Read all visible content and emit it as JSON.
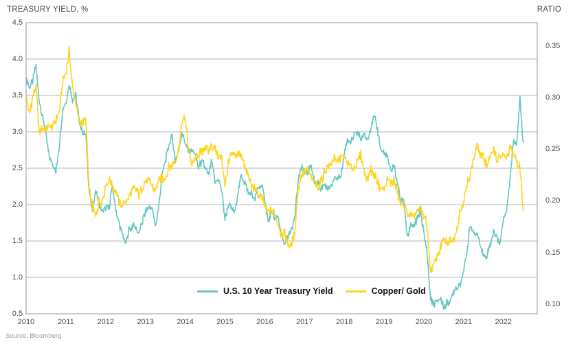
{
  "source_note": "Source: Bloomberg",
  "chart_data": {
    "type": "line",
    "title": "",
    "left_axis": {
      "title": "TREASURY YIELD, %",
      "tick_labels": [
        "4.5",
        "4.0",
        "3.5",
        "3.0",
        "2.5",
        "2.0",
        "1.5",
        "1.0",
        "0.5"
      ],
      "range": [
        0.5,
        4.5
      ]
    },
    "right_axis": {
      "title": "RATIO",
      "tick_labels": [
        "0.35",
        "0.30",
        "0.25",
        "0.20",
        "0.15",
        "0.10"
      ],
      "tick_range": [
        0.1,
        0.35
      ]
    },
    "x_axis": {
      "tick_labels": [
        "2010",
        "2011",
        "2012",
        "2013",
        "2014",
        "2015",
        "2016",
        "2017",
        "2018",
        "2019",
        "2020",
        "2021",
        "2022"
      ],
      "data_start": "2010-01",
      "data_end": "2022-07",
      "interval": "monthly"
    },
    "grid": "horizontal",
    "legend_position": "bottom-center-inside",
    "series": [
      {
        "id": "treasury-yield-line",
        "name": "U.S. 10 Year Treasury Yield",
        "axis": "left",
        "color": "#63c6c1",
        "noise_amplitude": 0.05,
        "values": [
          3.75,
          3.6,
          3.7,
          3.9,
          3.4,
          3.2,
          2.95,
          2.65,
          2.55,
          2.45,
          2.8,
          3.3,
          3.4,
          3.65,
          3.45,
          3.5,
          3.15,
          3.0,
          2.95,
          2.2,
          1.9,
          2.2,
          2.0,
          1.9,
          1.95,
          1.95,
          2.25,
          1.95,
          1.75,
          1.6,
          1.45,
          1.65,
          1.7,
          1.7,
          1.6,
          1.75,
          1.9,
          1.95,
          1.95,
          1.7,
          1.95,
          2.4,
          2.6,
          2.8,
          2.95,
          2.6,
          2.75,
          3.0,
          2.85,
          2.7,
          2.75,
          2.7,
          2.5,
          2.6,
          2.5,
          2.4,
          2.6,
          2.3,
          2.35,
          2.2,
          1.8,
          2.0,
          1.95,
          1.9,
          2.2,
          2.4,
          2.3,
          2.15,
          2.15,
          2.05,
          2.25,
          2.25,
          2.1,
          1.75,
          1.9,
          1.8,
          1.85,
          1.6,
          1.45,
          1.55,
          1.65,
          1.8,
          2.3,
          2.5,
          2.45,
          2.4,
          2.55,
          2.3,
          2.3,
          2.2,
          2.3,
          2.2,
          2.25,
          2.35,
          2.35,
          2.4,
          2.7,
          2.9,
          2.85,
          2.95,
          3.0,
          2.9,
          2.95,
          2.9,
          3.05,
          3.2,
          3.05,
          2.75,
          2.7,
          2.65,
          2.45,
          2.55,
          2.3,
          2.05,
          2.05,
          1.55,
          1.7,
          1.7,
          1.8,
          1.9,
          1.6,
          1.35,
          0.7,
          0.62,
          0.67,
          0.72,
          0.58,
          0.65,
          0.67,
          0.82,
          0.87,
          0.93,
          1.08,
          1.35,
          1.72,
          1.6,
          1.6,
          1.48,
          1.28,
          1.3,
          1.45,
          1.62,
          1.55,
          1.48,
          1.8,
          1.95,
          2.35,
          2.9,
          2.85,
          3.45,
          2.85
        ]
      },
      {
        "id": "copper-gold-line",
        "name": "Copper/ Gold",
        "axis": "right",
        "color": "#ffd41f",
        "noise_amplitude": 0.0045,
        "values": [
          0.3,
          0.285,
          0.3,
          0.31,
          0.265,
          0.27,
          0.27,
          0.272,
          0.272,
          0.278,
          0.285,
          0.315,
          0.325,
          0.345,
          0.31,
          0.295,
          0.275,
          0.275,
          0.28,
          0.21,
          0.195,
          0.185,
          0.2,
          0.2,
          0.215,
          0.22,
          0.215,
          0.21,
          0.2,
          0.195,
          0.2,
          0.203,
          0.21,
          0.212,
          0.205,
          0.212,
          0.218,
          0.22,
          0.215,
          0.21,
          0.22,
          0.222,
          0.222,
          0.232,
          0.235,
          0.24,
          0.25,
          0.275,
          0.28,
          0.25,
          0.235,
          0.24,
          0.245,
          0.247,
          0.253,
          0.248,
          0.253,
          0.25,
          0.243,
          0.24,
          0.215,
          0.235,
          0.245,
          0.243,
          0.245,
          0.245,
          0.232,
          0.225,
          0.215,
          0.212,
          0.205,
          0.203,
          0.195,
          0.188,
          0.19,
          0.188,
          0.178,
          0.168,
          0.168,
          0.16,
          0.155,
          0.168,
          0.21,
          0.225,
          0.227,
          0.23,
          0.222,
          0.218,
          0.213,
          0.218,
          0.228,
          0.235,
          0.235,
          0.24,
          0.238,
          0.243,
          0.242,
          0.237,
          0.232,
          0.232,
          0.238,
          0.245,
          0.228,
          0.222,
          0.23,
          0.226,
          0.218,
          0.212,
          0.21,
          0.22,
          0.218,
          0.22,
          0.208,
          0.197,
          0.197,
          0.186,
          0.186,
          0.183,
          0.19,
          0.192,
          0.185,
          0.175,
          0.132,
          0.14,
          0.146,
          0.155,
          0.162,
          0.158,
          0.162,
          0.163,
          0.175,
          0.19,
          0.2,
          0.215,
          0.227,
          0.24,
          0.253,
          0.245,
          0.243,
          0.235,
          0.24,
          0.253,
          0.24,
          0.243,
          0.243,
          0.24,
          0.253,
          0.245,
          0.237,
          0.232,
          0.19
        ]
      }
    ]
  }
}
